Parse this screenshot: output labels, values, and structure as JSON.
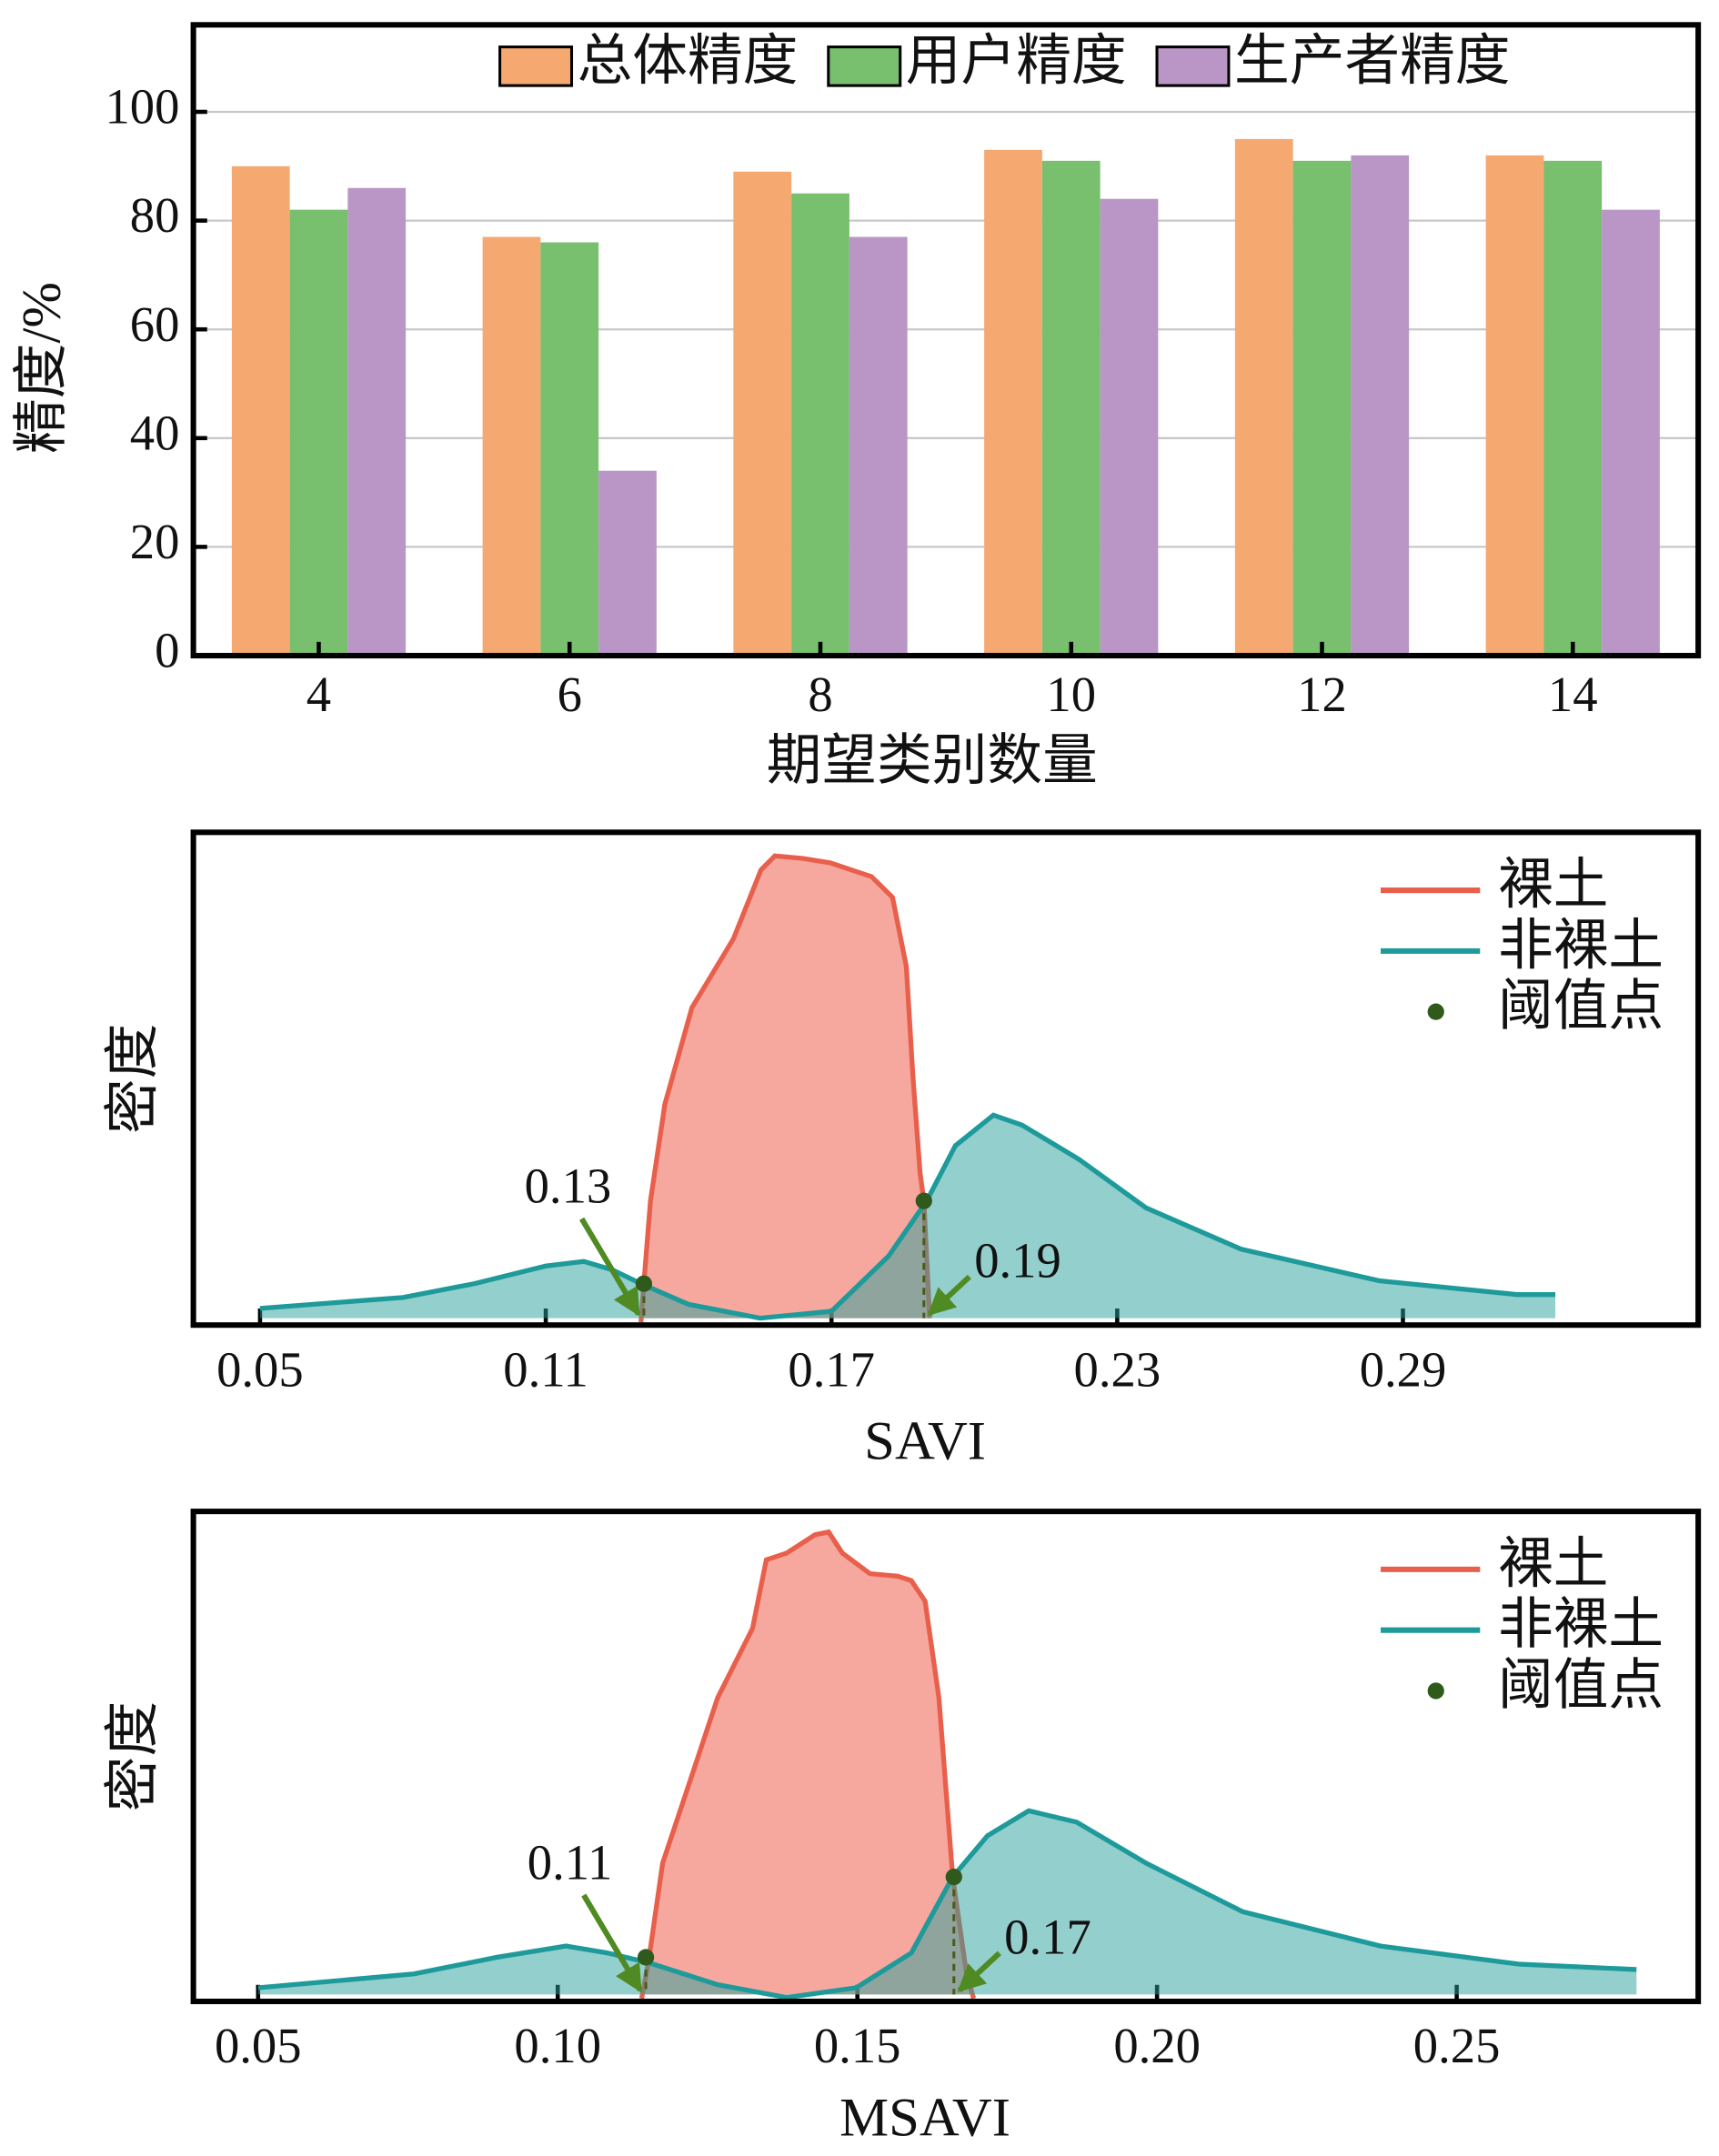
{
  "chart_data": [
    {
      "type": "bar",
      "categories": [
        "4",
        "6",
        "8",
        "10",
        "12",
        "14"
      ],
      "series": [
        {
          "name": "总体精度",
          "color": "#f5a870",
          "values": [
            90,
            77,
            89,
            93,
            95,
            92
          ]
        },
        {
          "name": "用户精度",
          "color": "#78bf6e",
          "values": [
            82,
            76,
            85,
            91,
            91,
            91
          ]
        },
        {
          "name": "生产者精度",
          "color": "#b996c6",
          "values": [
            86,
            34,
            77,
            84,
            92,
            82
          ]
        }
      ],
      "ylim": [
        0,
        116
      ],
      "yticks": [
        0,
        20,
        40,
        60,
        80,
        100
      ],
      "grid": true,
      "x_label": "期望类别数量",
      "y_label": "精度/%",
      "legend": "upper center"
    },
    {
      "type": "density",
      "x_label": "SAVI",
      "y_label": "密度",
      "xlim": [
        0.036,
        0.352
      ],
      "xticks": [
        0.05,
        0.11,
        0.17,
        0.23,
        0.29
      ],
      "ylim": [
        0,
        100
      ],
      "legend": "upper right",
      "series": [
        {
          "name": "裸土",
          "color": "#e8604c",
          "x": [
            0.13,
            0.1306,
            0.132,
            0.135,
            0.1407,
            0.1494,
            0.1552,
            0.1581,
            0.1639,
            0.1697,
            0.1784,
            0.1828,
            0.1857,
            0.1871,
            0.1886,
            0.1894,
            0.1906
          ],
          "values": [
            0.6,
            8.4,
            25.2,
            44.8,
            64.4,
            78.4,
            92.4,
            95.2,
            94.7,
            93.8,
            91,
            86.8,
            72.8,
            50.4,
            30.8,
            25.2,
            1.4
          ]
        },
        {
          "name": "非裸土",
          "color": "#1e9a9a",
          "x": [
            0.05,
            0.08,
            0.095,
            0.11,
            0.118,
            0.124,
            0.13,
            0.14,
            0.155,
            0.17,
            0.182,
            0.19,
            0.196,
            0.204,
            0.21,
            0.222,
            0.236,
            0.256,
            0.285,
            0.314,
            0.322
          ],
          "values": [
            3.4,
            5.6,
            8.4,
            12,
            12.9,
            11.2,
            8.4,
            4.2,
            1.4,
            2.8,
            14,
            25.2,
            36.4,
            42.6,
            40.6,
            33.6,
            23.8,
            15.4,
            9,
            6.2,
            6.2
          ]
        }
      ],
      "thresholds": {
        "name": "阈值点",
        "color": "#2f5a1c",
        "x": [
          0.1306,
          0.1894
        ],
        "y": [
          8.4,
          25.2
        ],
        "labels": [
          "0.13",
          "0.19"
        ]
      }
    },
    {
      "type": "density",
      "x_label": "MSAVI",
      "y_label": "密度",
      "xlim": [
        0.0392,
        0.2903
      ],
      "xticks": [
        0.05,
        {
          "value": 0.1,
          "label": "0.10"
        },
        0.15,
        {
          "value": 0.2,
          "label": "0.20"
        },
        0.25
      ],
      "ylim": [
        0,
        100
      ],
      "legend": "upper right",
      "series": [
        {
          "name": "裸土",
          "color": "#e8604c",
          "x": [
            0.114,
            0.1152,
            0.1175,
            0.1221,
            0.1267,
            0.1325,
            0.1348,
            0.1382,
            0.1429,
            0.1452,
            0.1475,
            0.1521,
            0.1567,
            0.159,
            0.1613,
            0.1636,
            0.1659,
            0.1682,
            0.1694
          ],
          "values": [
            0.6,
            8.5,
            28.2,
            45.1,
            62,
            76.1,
            90.1,
            91.5,
            95.2,
            95.8,
            91.5,
            87.3,
            86.8,
            85.9,
            81.7,
            62,
            25.4,
            5.6,
            0.6
          ]
        },
        {
          "name": "非裸土",
          "color": "#1e9a9a",
          "x": [
            0.05,
            0.076,
            0.0899,
            0.1014,
            0.1083,
            0.1152,
            0.1267,
            0.1382,
            0.1498,
            0.159,
            0.1659,
            0.1717,
            0.1786,
            0.1866,
            0.1982,
            0.2143,
            0.2373,
            0.2604,
            0.28
          ],
          "values": [
            2.8,
            5.6,
            9,
            11.3,
            9.9,
            7.9,
            3.4,
            0.8,
            2.8,
            9.9,
            25.4,
            33.8,
            38.9,
            36.6,
            28.2,
            18.3,
            11.3,
            7.6,
            6.5
          ]
        }
      ],
      "thresholds": {
        "name": "阈值点",
        "color": "#2f5a1c",
        "x": [
          0.1147,
          0.1661
        ],
        "y": [
          9.0,
          25.4
        ],
        "labels": [
          "0.11",
          "0.17"
        ]
      }
    }
  ]
}
